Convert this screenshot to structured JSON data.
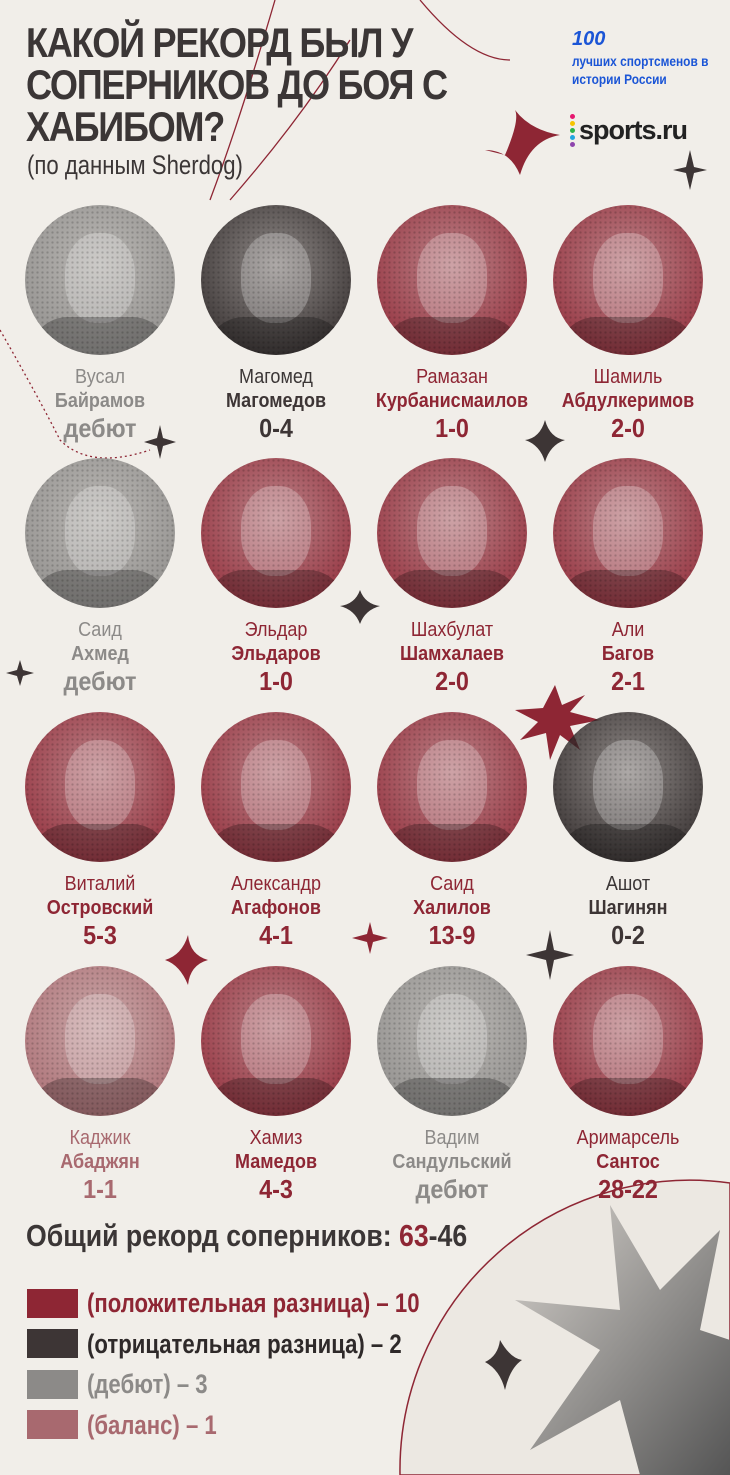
{
  "colors": {
    "positive": "#8e2634",
    "negative": "#3d3535",
    "debut": "#8c8a88",
    "balance": "#a8696f",
    "background": "#f1eee9",
    "brand": "#1b55d6"
  },
  "header": {
    "title": "КАКОЙ РЕКОРД БЫЛ У СОПЕРНИКОВ ДО БОЯ С ХАБИБОМ?",
    "subtitle": "(по данным Sherdog)"
  },
  "brand": {
    "number": "100",
    "tagline": "лучших спортсменов в истории России",
    "logo_text": "sports.ru",
    "logo_dot_colors": [
      "#e6176f",
      "#f5c400",
      "#2db34a",
      "#1fa6e0",
      "#8e44ad"
    ]
  },
  "opponents": [
    {
      "first": "Вусал",
      "last": "Байрамов",
      "record": "дебют",
      "category": "debut"
    },
    {
      "first": "Магомед",
      "last": "Магомедов",
      "record": "0-4",
      "category": "negative"
    },
    {
      "first": "Рамазан",
      "last": "Курбанисмаилов",
      "record": "1-0",
      "category": "positive"
    },
    {
      "first": "Шамиль",
      "last": "Абдулкеримов",
      "record": "2-0",
      "category": "positive"
    },
    {
      "first": "Саид",
      "last": "Ахмед",
      "record": "дебют",
      "category": "debut"
    },
    {
      "first": "Эльдар",
      "last": "Эльдаров",
      "record": "1-0",
      "category": "positive"
    },
    {
      "first": "Шахбулат",
      "last": "Шамхалаев",
      "record": "2-0",
      "category": "positive"
    },
    {
      "first": "Али",
      "last": "Багов",
      "record": "2-1",
      "category": "positive"
    },
    {
      "first": "Виталий",
      "last": "Островский",
      "record": "5-3",
      "category": "positive"
    },
    {
      "first": "Александр",
      "last": "Агафонов",
      "record": "4-1",
      "category": "positive"
    },
    {
      "first": "Саид",
      "last": "Халилов",
      "record": "13-9",
      "category": "positive"
    },
    {
      "first": "Ашот",
      "last": "Шагинян",
      "record": "0-2",
      "category": "negative"
    },
    {
      "first": "Каджик",
      "last": "Абаджян",
      "record": "1-1",
      "category": "balance"
    },
    {
      "first": "Хамиз",
      "last": "Мамедов",
      "record": "4-3",
      "category": "positive"
    },
    {
      "first": "Вадим",
      "last": "Сандульский",
      "record": "дебют",
      "category": "debut"
    },
    {
      "first": "Аримарсель",
      "last": "Сантос",
      "record": "28-22",
      "category": "positive"
    }
  ],
  "summary": {
    "label": "Общий рекорд соперников:",
    "wins": "63",
    "losses": "-46"
  },
  "legend": [
    {
      "label": "(положительная разница) – 10",
      "category": "positive"
    },
    {
      "label": "(отрицательная разница) – 2",
      "category": "negative"
    },
    {
      "label": "(дебют) – 3",
      "category": "debut"
    },
    {
      "label": "(баланс) – 1",
      "category": "balance"
    }
  ]
}
